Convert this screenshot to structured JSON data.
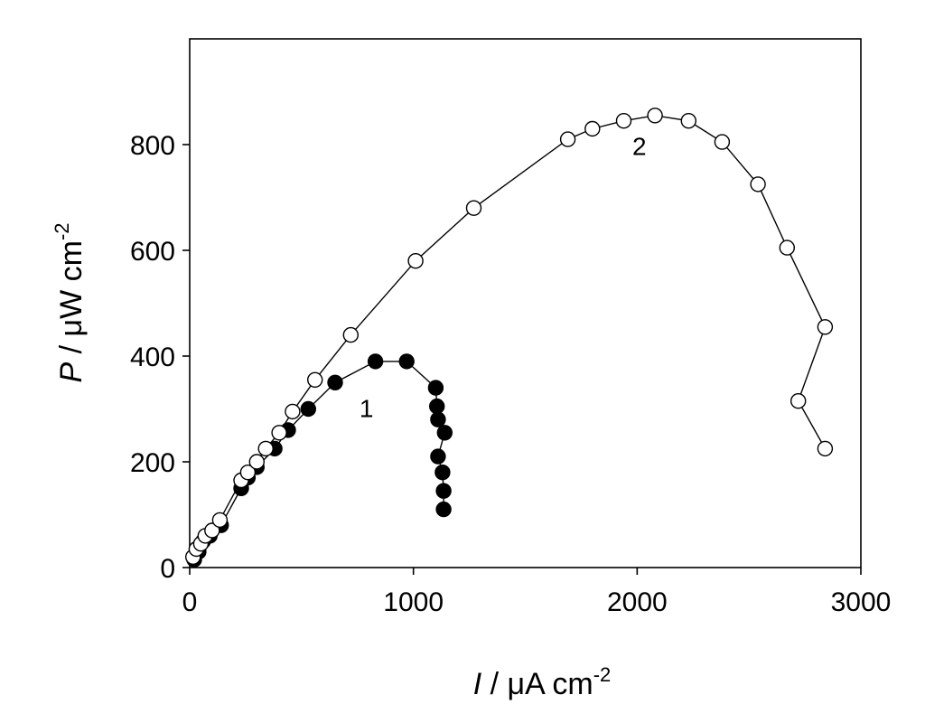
{
  "chart_data": {
    "type": "scatter",
    "title": "",
    "xlabel": {
      "italic": "I",
      "rest": " / μA cm",
      "sup": "-2"
    },
    "ylabel": {
      "italic": "P",
      "rest": " / μW cm",
      "sup": "-2"
    },
    "xlim": [
      0,
      3000
    ],
    "ylim": [
      0,
      1000
    ],
    "xticks": [
      0,
      1000,
      2000,
      3000
    ],
    "yticks": [
      0,
      200,
      400,
      600,
      800
    ],
    "grid": false,
    "legend": "none",
    "series": [
      {
        "label": "1",
        "marker": "filled-circle",
        "color": "#000000",
        "connected": true,
        "label_at": [
          790,
          285
        ],
        "x": [
          20,
          40,
          60,
          90,
          140,
          230,
          260,
          300,
          380,
          440,
          530,
          650,
          830,
          970,
          1100,
          1105,
          1110,
          1140,
          1110,
          1130,
          1135,
          1135
        ],
        "y": [
          15,
          30,
          50,
          60,
          80,
          150,
          170,
          190,
          225,
          260,
          300,
          350,
          390,
          390,
          340,
          305,
          280,
          255,
          210,
          180,
          145,
          110
        ]
      },
      {
        "label": "2",
        "marker": "open-circle",
        "color": "#000000",
        "connected": true,
        "label_at": [
          2010,
          780
        ],
        "x": [
          15,
          30,
          50,
          70,
          100,
          135,
          230,
          260,
          300,
          340,
          400,
          460,
          560,
          720,
          1010,
          1270,
          1690,
          1800,
          1940,
          2080,
          2230,
          2380,
          2540,
          2670,
          2840,
          2720,
          2840
        ],
        "y": [
          20,
          35,
          45,
          60,
          70,
          90,
          165,
          180,
          200,
          225,
          255,
          295,
          355,
          440,
          580,
          680,
          810,
          830,
          845,
          855,
          845,
          805,
          725,
          605,
          455,
          315,
          225
        ]
      }
    ]
  }
}
